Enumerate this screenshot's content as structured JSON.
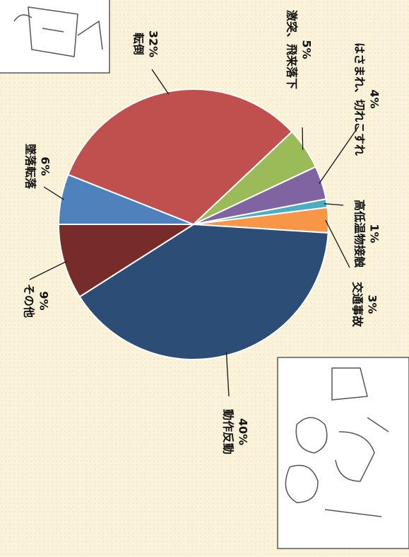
{
  "chart_data": {
    "type": "pie",
    "categories": [
      "墜落転落",
      "転倒",
      "激突、飛来落下",
      "はさまれ、切れこすれ",
      "高低温物接触",
      "交通事故",
      "動作反動",
      "その他"
    ],
    "values": [
      6,
      32,
      5,
      4,
      1,
      3,
      40,
      9
    ],
    "value_labels": [
      "6%",
      "32%",
      "5%",
      "4%",
      "1%",
      "3%",
      "40%",
      "9%"
    ],
    "colors": [
      "#4f81bd",
      "#c0504d",
      "#9bbb59",
      "#8064a2",
      "#4bacc6",
      "#f79646",
      "#2c4d75",
      "#772c2a"
    ]
  }
}
